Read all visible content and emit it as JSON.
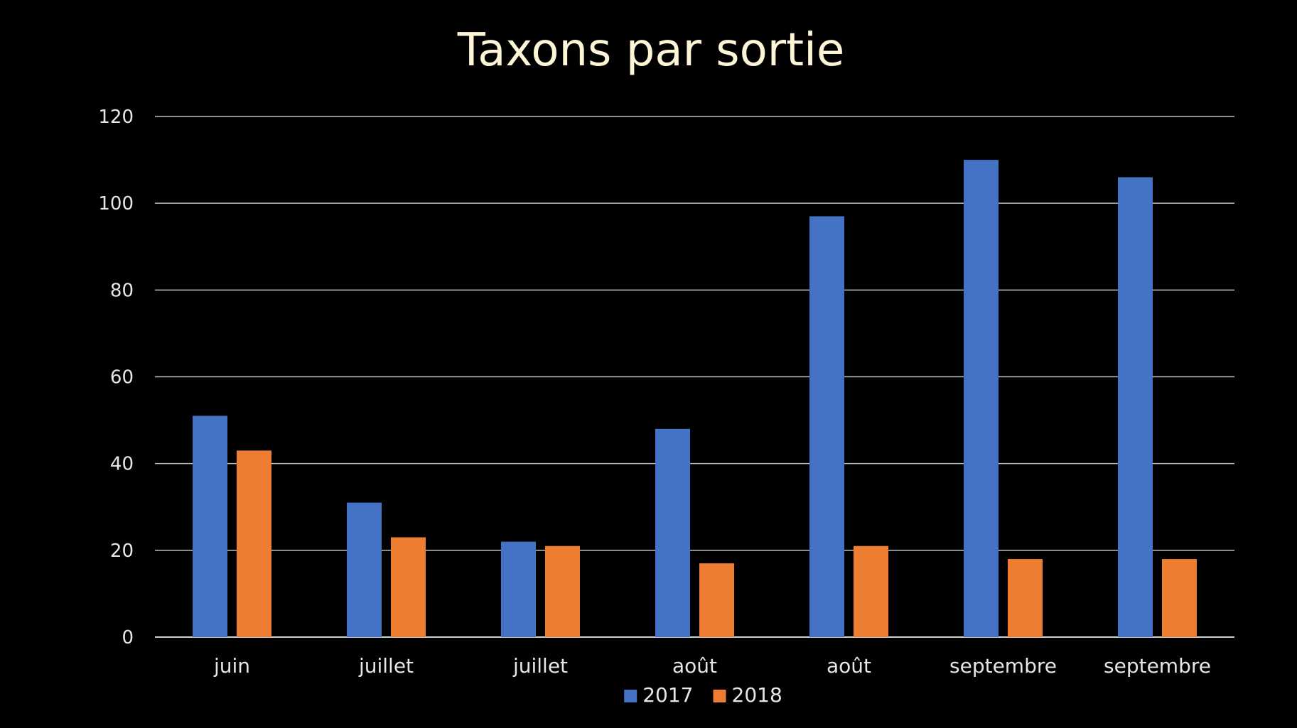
{
  "chart_data": {
    "type": "bar",
    "title": "Taxons par sortie",
    "xlabel": "",
    "ylabel": "",
    "categories": [
      "juin",
      "juillet",
      "juillet",
      "août",
      "août",
      "septembre",
      "septembre"
    ],
    "series": [
      {
        "name": "2017",
        "color": "#4472c4",
        "values": [
          51,
          31,
          22,
          48,
          97,
          110,
          106
        ]
      },
      {
        "name": "2018",
        "color": "#ed7d31",
        "values": [
          43,
          23,
          21,
          17,
          21,
          18,
          18
        ]
      }
    ],
    "ylim": [
      0,
      120
    ],
    "yticks": [
      0,
      20,
      40,
      60,
      80,
      100,
      120
    ],
    "grid": true,
    "legend_position": "bottom"
  }
}
